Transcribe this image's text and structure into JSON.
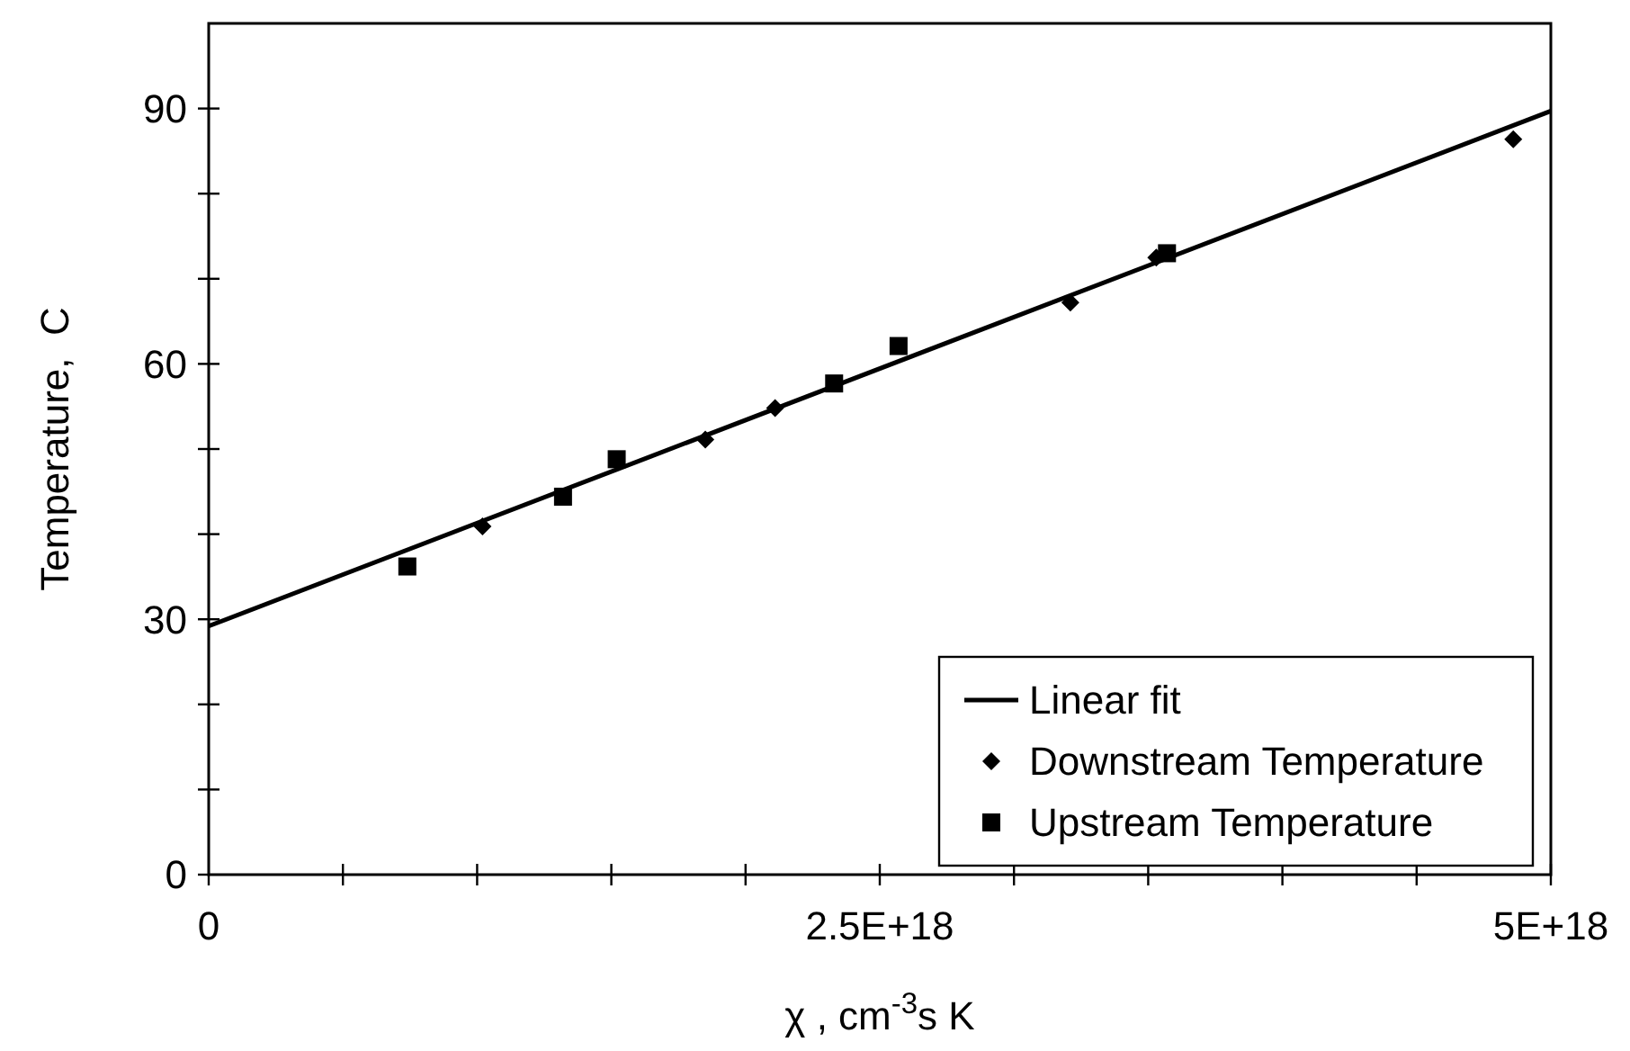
{
  "chart_data": {
    "type": "scatter",
    "xlabel": "χ , cm$^{-3}$s K",
    "ylabel": "Temperature,  C",
    "xlim": [
      0,
      5e+18
    ],
    "ylim": [
      0,
      100
    ],
    "xticks": [
      {
        "value": 0,
        "label": "0"
      },
      {
        "value": 5e+17,
        "label": null
      },
      {
        "value": 1e+18,
        "label": null
      },
      {
        "value": 1.5e+18,
        "label": null
      },
      {
        "value": 2e+18,
        "label": null
      },
      {
        "value": 2.5e+18,
        "label": "2.5E+18"
      },
      {
        "value": 3e+18,
        "label": null
      },
      {
        "value": 3.5e+18,
        "label": null
      },
      {
        "value": 4e+18,
        "label": null
      },
      {
        "value": 4.5e+18,
        "label": null
      },
      {
        "value": 5e+18,
        "label": "5E+18"
      }
    ],
    "yticks": [
      0,
      {
        "value": 10,
        "label": null
      },
      {
        "value": 20,
        "label": null
      },
      30,
      {
        "value": 40,
        "label": null
      },
      {
        "value": 50,
        "label": null
      },
      60,
      {
        "value": 70,
        "label": null
      },
      {
        "value": 80,
        "label": null
      },
      90
    ],
    "legend": "bottom right",
    "grid": false,
    "series": [
      {
        "name": "Linear fit",
        "type": "line",
        "color": "#000000",
        "marker": "none",
        "line_style": "solid",
        "x": [
          0,
          5e+18
        ],
        "values": [
          29.2,
          89.7
        ]
      },
      {
        "name": "Downstream Temperature",
        "color": "#000000",
        "marker": "diamond",
        "x": [
          1.02e+18,
          1.85e+18,
          2.11e+18,
          3.21e+18,
          3.53e+18,
          4.86e+18
        ],
        "values": [
          40.9,
          51.1,
          54.8,
          67.2,
          72.5,
          86.4
        ]
      },
      {
        "name": "Upstream Temperature",
        "color": "#000000",
        "marker": "square",
        "x": [
          7.4e+17,
          1.32e+18,
          1.52e+18,
          2.33e+18,
          2.57e+18,
          3.57e+18
        ],
        "values": [
          36.2,
          44.4,
          48.8,
          57.7,
          62.1,
          73.0
        ]
      }
    ]
  }
}
